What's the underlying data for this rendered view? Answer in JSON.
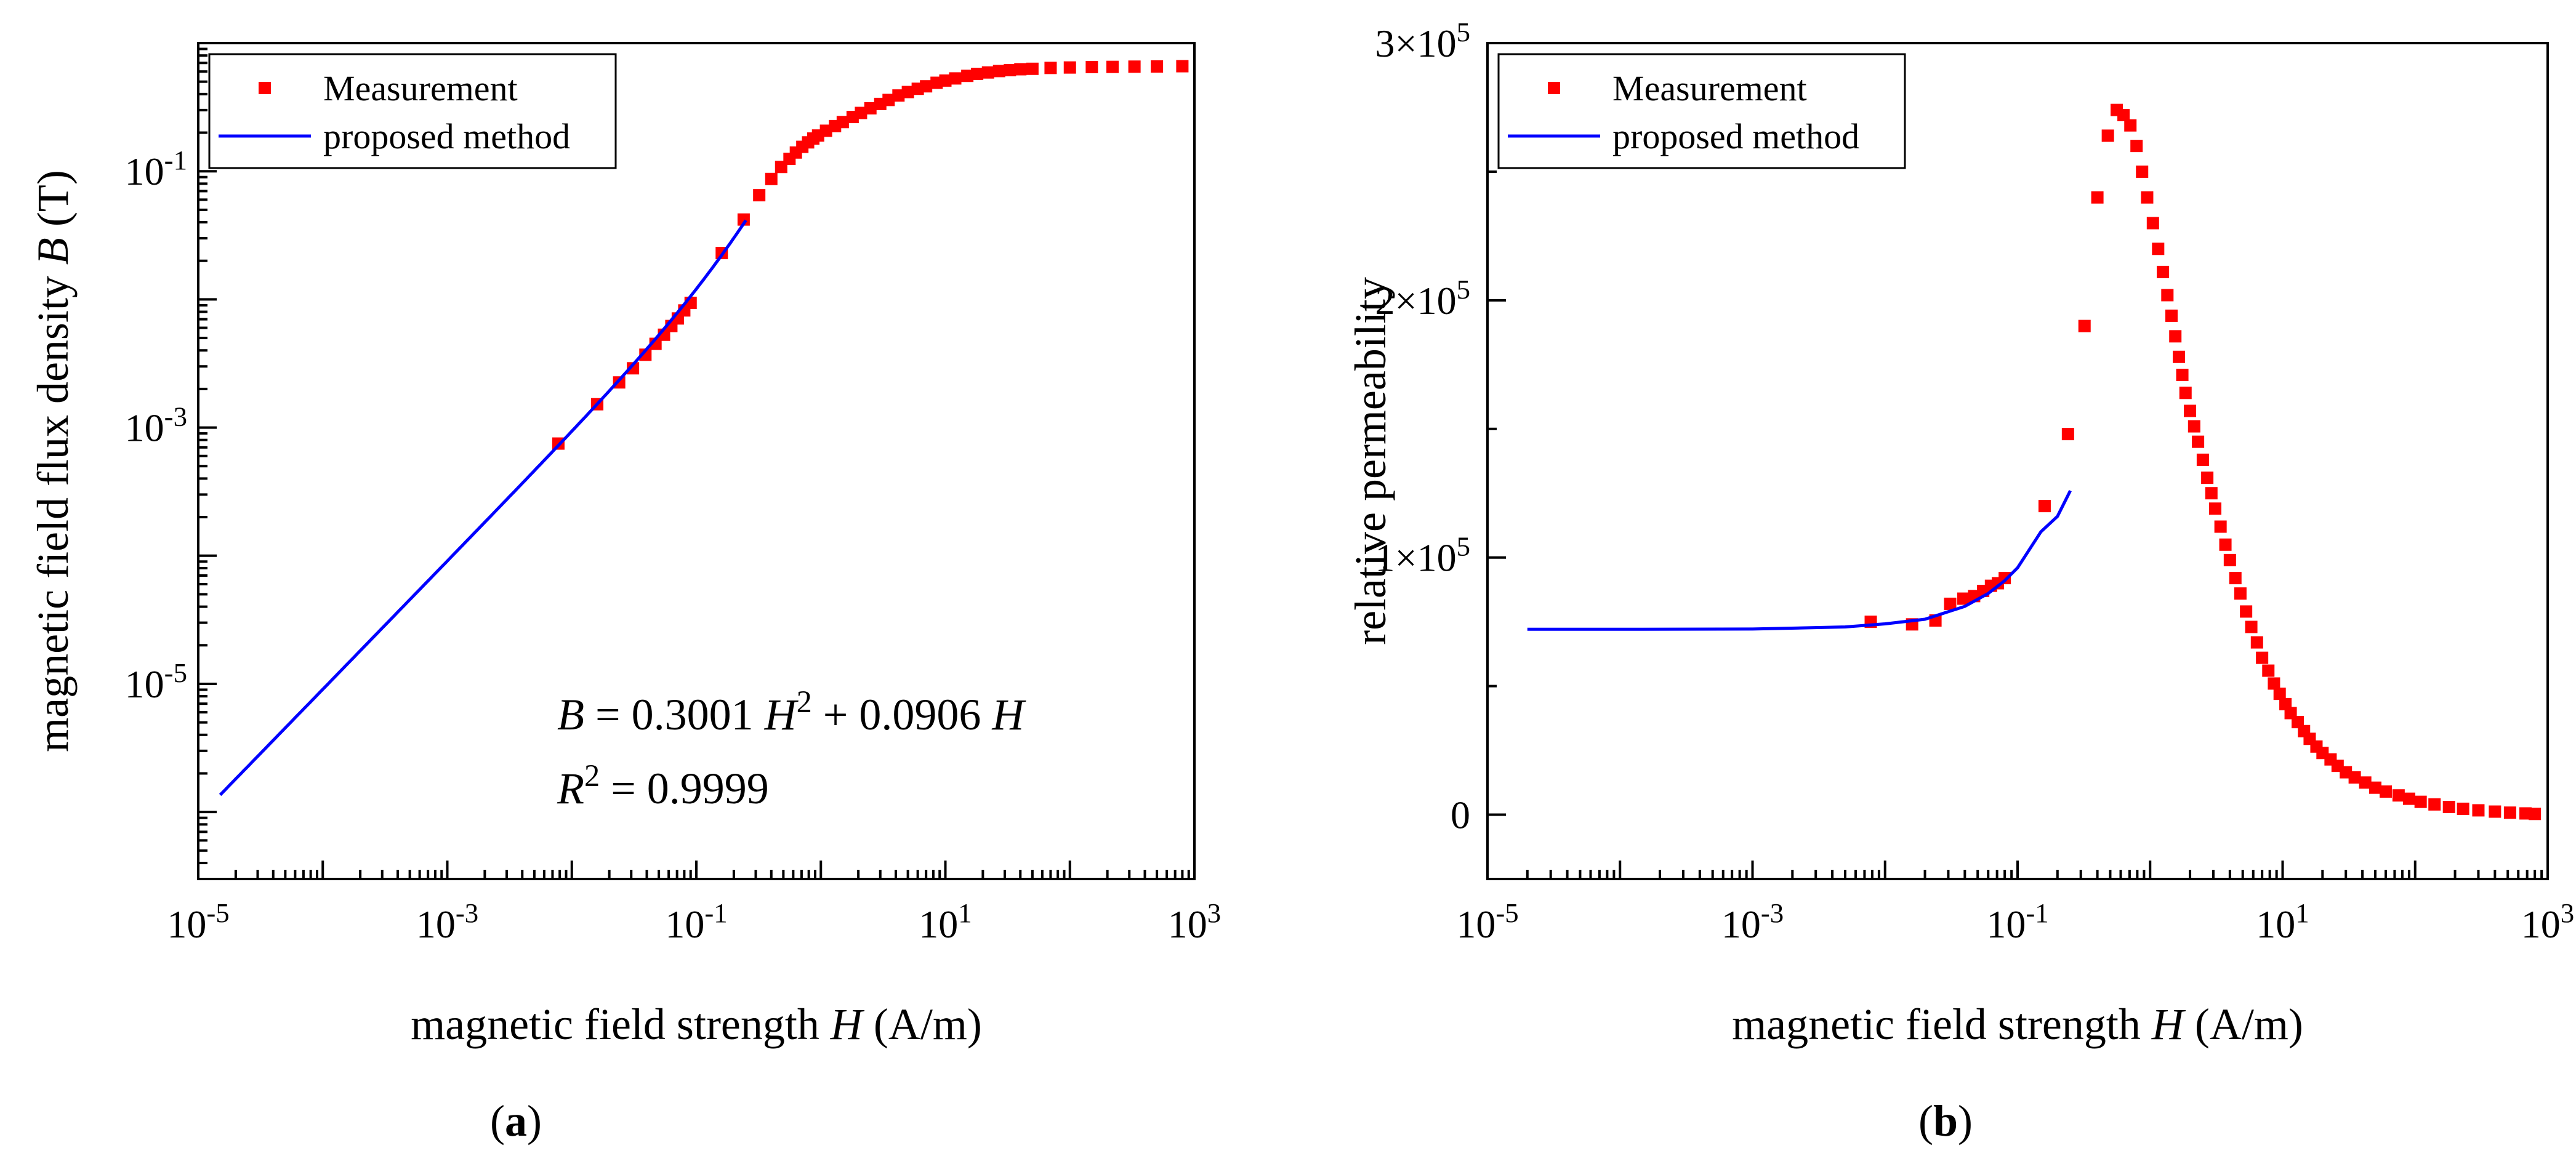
{
  "chart_data": [
    {
      "type": "scatter",
      "panel_label": "a",
      "xscale": "log",
      "yscale": "log",
      "xlabel": "magnetic field strength",
      "xlabel_var": "H",
      "xlabel_unit": " (A/m)",
      "ylabel": "magnetic field flux density",
      "ylabel_var": "B",
      "ylabel_unit": " (T)",
      "xlim": [
        1e-05,
        1000
      ],
      "ylim": [
        3e-07,
        1
      ],
      "xtick_exps": [
        "-5",
        "-3",
        "-1",
        "1",
        "3"
      ],
      "ytick_exps": [
        "-5",
        "-3",
        "-1"
      ],
      "legend": {
        "position": "top-left",
        "entries": [
          "Measurement",
          "proposed method"
        ]
      },
      "annotation": {
        "equation_parts": [
          "B",
          " = 0.3001 ",
          "H",
          "2",
          " + 0.0906 ",
          "H"
        ],
        "r2_parts": [
          "R",
          "2",
          " = 0.9999"
        ]
      },
      "series": [
        {
          "name": "Measurement",
          "marker": "square",
          "color": "#ff0000",
          "points": [
            [
              0.0078,
              0.00075
            ],
            [
              0.016,
              0.00152
            ],
            [
              0.024,
              0.00225
            ],
            [
              0.031,
              0.0029
            ],
            [
              0.039,
              0.0037
            ],
            [
              0.047,
              0.0045
            ],
            [
              0.055,
              0.0053
            ],
            [
              0.063,
              0.0062
            ],
            [
              0.071,
              0.0071
            ],
            [
              0.08,
              0.0082
            ],
            [
              0.09,
              0.0094
            ],
            [
              0.16,
              0.023
            ],
            [
              0.24,
              0.042
            ],
            [
              0.32,
              0.065
            ],
            [
              0.4,
              0.087
            ],
            [
              0.48,
              0.108
            ],
            [
              0.56,
              0.125
            ],
            [
              0.63,
              0.14
            ],
            [
              0.71,
              0.155
            ],
            [
              0.79,
              0.168
            ],
            [
              0.87,
              0.18
            ],
            [
              0.95,
              0.19
            ],
            [
              1.1,
              0.207
            ],
            [
              1.3,
              0.225
            ],
            [
              1.5,
              0.242
            ],
            [
              1.8,
              0.265
            ],
            [
              2.1,
              0.285
            ],
            [
              2.5,
              0.31
            ],
            [
              3.0,
              0.335
            ],
            [
              3.5,
              0.36
            ],
            [
              4.2,
              0.39
            ],
            [
              5.0,
              0.415
            ],
            [
              6.0,
              0.44
            ],
            [
              7.0,
              0.46
            ],
            [
              8.5,
              0.49
            ],
            [
              10,
              0.51
            ],
            [
              12,
              0.53
            ],
            [
              15,
              0.555
            ],
            [
              18,
              0.575
            ],
            [
              22,
              0.59
            ],
            [
              27,
              0.605
            ],
            [
              33,
              0.615
            ],
            [
              40,
              0.625
            ],
            [
              50,
              0.63
            ],
            [
              70,
              0.64
            ],
            [
              100,
              0.645
            ],
            [
              150,
              0.65
            ],
            [
              220,
              0.652
            ],
            [
              330,
              0.655
            ],
            [
              500,
              0.657
            ],
            [
              800,
              0.66
            ]
          ]
        },
        {
          "name": "proposed method",
          "line": true,
          "color": "#0000ff",
          "model": "B = 0.3001 H^2 + 0.0906 H",
          "coefficients": {
            "a2": 0.3001,
            "a1": 0.0906
          },
          "x_range": [
            1.5e-05,
            0.25
          ]
        }
      ]
    },
    {
      "type": "scatter",
      "panel_label": "b",
      "xscale": "log",
      "yscale": "linear",
      "xlabel": "magnetic field strength",
      "xlabel_var": "H",
      "xlabel_unit": " (A/m)",
      "ylabel": "relative permeability",
      "xlim": [
        1e-05,
        1000
      ],
      "ylim": [
        -25000,
        300000
      ],
      "xtick_exps": [
        "-5",
        "-3",
        "-1",
        "1",
        "3"
      ],
      "yticks": [
        {
          "value": 0,
          "label": "0",
          "exp": ""
        },
        {
          "value": 100000,
          "label": "1×10",
          "exp": "5"
        },
        {
          "value": 200000,
          "label": "2×10",
          "exp": "5"
        },
        {
          "value": 300000,
          "label": "3×10",
          "exp": "5"
        }
      ],
      "legend": {
        "position": "top-left",
        "entries": [
          "Measurement",
          "proposed method"
        ]
      },
      "series": [
        {
          "name": "Measurement",
          "marker": "square",
          "color": "#ff0000",
          "points": [
            [
              0.0078,
              75000
            ],
            [
              0.016,
              74000
            ],
            [
              0.024,
              75500
            ],
            [
              0.031,
              82000
            ],
            [
              0.039,
              84000
            ],
            [
              0.047,
              85000
            ],
            [
              0.055,
              87000
            ],
            [
              0.063,
              89000
            ],
            [
              0.071,
              90000
            ],
            [
              0.08,
              92000
            ],
            [
              0.16,
              120000
            ],
            [
              0.24,
              148000
            ],
            [
              0.32,
              190000
            ],
            [
              0.4,
              240000
            ],
            [
              0.48,
              264000
            ],
            [
              0.56,
              274000
            ],
            [
              0.63,
              272000
            ],
            [
              0.71,
              268000
            ],
            [
              0.79,
              260000
            ],
            [
              0.87,
              250000
            ],
            [
              0.95,
              240000
            ],
            [
              1.05,
              230000
            ],
            [
              1.15,
              220000
            ],
            [
              1.25,
              211000
            ],
            [
              1.35,
              202000
            ],
            [
              1.45,
              194000
            ],
            [
              1.55,
              186000
            ],
            [
              1.65,
              178000
            ],
            [
              1.75,
              171000
            ],
            [
              1.85,
              164000
            ],
            [
              2.0,
              157000
            ],
            [
              2.15,
              151000
            ],
            [
              2.3,
              145000
            ],
            [
              2.5,
              138000
            ],
            [
              2.7,
              131000
            ],
            [
              2.9,
              125000
            ],
            [
              3.1,
              119000
            ],
            [
              3.4,
              112000
            ],
            [
              3.7,
              105000
            ],
            [
              4.0,
              99000
            ],
            [
              4.4,
              92000
            ],
            [
              4.8,
              86000
            ],
            [
              5.3,
              79000
            ],
            [
              5.8,
              73000
            ],
            [
              6.4,
              67000
            ],
            [
              7.0,
              61000
            ],
            [
              7.8,
              56000
            ],
            [
              8.6,
              51000
            ],
            [
              9.5,
              47000
            ],
            [
              10.5,
              43000
            ],
            [
              11.5,
              39500
            ],
            [
              13,
              36000
            ],
            [
              14.5,
              32500
            ],
            [
              16,
              29500
            ],
            [
              18,
              26500
            ],
            [
              20,
              24000
            ],
            [
              23,
              21500
            ],
            [
              26,
              19000
            ],
            [
              30,
              16500
            ],
            [
              35,
              14500
            ],
            [
              42,
              12500
            ],
            [
              50,
              10500
            ],
            [
              60,
              9000
            ],
            [
              75,
              7500
            ],
            [
              90,
              6200
            ],
            [
              110,
              5000
            ],
            [
              140,
              4000
            ],
            [
              180,
              3000
            ],
            [
              230,
              2300
            ],
            [
              300,
              1700
            ],
            [
              400,
              1200
            ],
            [
              520,
              800
            ],
            [
              680,
              500
            ],
            [
              800,
              300
            ]
          ]
        },
        {
          "name": "proposed method",
          "line": true,
          "color": "#0000ff",
          "model": "mu_r from B = 0.3001 H^2 + 0.0906 H",
          "points": [
            [
              2e-05,
              72100
            ],
            [
              0.0001,
              72100
            ],
            [
              0.001,
              72200
            ],
            [
              0.005,
              73000
            ],
            [
              0.01,
              74200
            ],
            [
              0.02,
              76000
            ],
            [
              0.04,
              81000
            ],
            [
              0.06,
              86000
            ],
            [
              0.08,
              91000
            ],
            [
              0.1,
              96000
            ],
            [
              0.15,
              110000
            ],
            [
              0.2,
              116000
            ],
            [
              0.25,
              126000
            ]
          ]
        }
      ]
    }
  ]
}
